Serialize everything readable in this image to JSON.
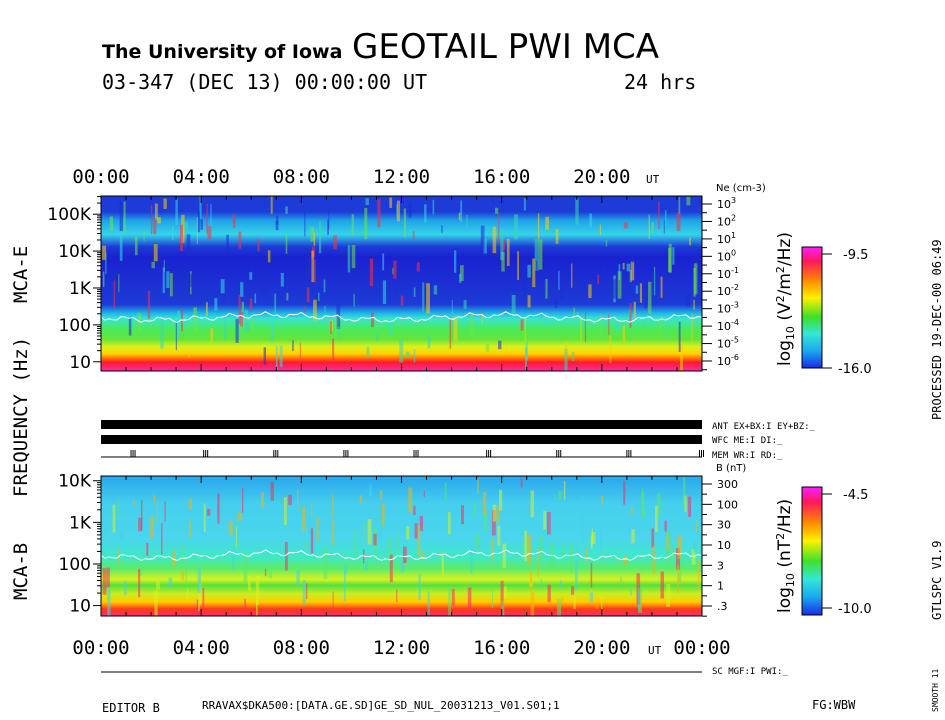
{
  "header": {
    "institution": "The University of Iowa",
    "title": "GEOTAIL PWI MCA",
    "date_line": "03-347 (DEC 13) 00:00:00 UT",
    "duration": "24 hrs"
  },
  "side_labels": {
    "processed": "PROCESSED 19-DEC-00  06:49",
    "version": "GTLSPC   V1.9",
    "smooth": "SMOOTH 11",
    "frequency_axis": "FREQUENCY (Hz)",
    "mca_e": "MCA-E",
    "mca_b": "MCA-B"
  },
  "time_axis": {
    "ticks": [
      "00:00",
      "04:00",
      "08:00",
      "12:00",
      "16:00",
      "20:00"
    ],
    "end_tick": "00:00",
    "unit": "UT"
  },
  "status_lines": {
    "ant": "ANT EX+BX:I  EY+BZ:_",
    "wfc": "WFC ME:I     DI:_",
    "mem": "MEM WR:I     RD:_",
    "sc": "SC MGF:I    PWI:_"
  },
  "footer": {
    "editor": "EDITOR B",
    "file": "RRAVAX$DKA500:[DATA.GE.SD]GE_SD_NUL_20031213_V01.S01;1",
    "fg": "FG:WBW"
  },
  "chart_data": [
    {
      "type": "heatmap",
      "panel": "MCA-E",
      "xlabel": "",
      "ylabel": "FREQUENCY (Hz)",
      "x_range_hours": [
        0,
        24
      ],
      "y_scale": "log",
      "y_ticks": [
        "10",
        "100",
        "1K",
        "10K",
        "100K"
      ],
      "y_range_hz": [
        5.62,
        311000
      ],
      "right_axis": {
        "label": "Ne (cm-3)",
        "ticks": [
          "10^3",
          "10^2",
          "10^1",
          "10^0",
          "10^-1",
          "10^-2",
          "10^-3",
          "10^-4",
          "10^-5",
          "10^-6"
        ]
      },
      "colorbar": {
        "label": "log10 (V2/m2/Hz)",
        "max": "-9.5",
        "min": "-16.0"
      },
      "cyclotron_line_hz": 160
    },
    {
      "type": "heatmap",
      "panel": "MCA-B",
      "xlabel": "UT",
      "ylabel": "FREQUENCY (Hz)",
      "x_range_hours": [
        0,
        24
      ],
      "y_scale": "log",
      "y_ticks": [
        "10",
        "100",
        "1K",
        "10K"
      ],
      "y_range_hz": [
        5.62,
        13000
      ],
      "right_axis": {
        "label": "B (nT)",
        "ticks": [
          "300",
          "100",
          "30",
          "10",
          "3",
          "1",
          ".3"
        ]
      },
      "colorbar": {
        "label": "log10 (nT2/Hz)",
        "max": "-4.5",
        "min": "-10.0"
      },
      "cyclotron_line_hz": 160
    }
  ],
  "mem_marker_hours": [
    1.2,
    4.1,
    6.9,
    9.7,
    12.5,
    15.4,
    18.2,
    21.0,
    23.9
  ]
}
